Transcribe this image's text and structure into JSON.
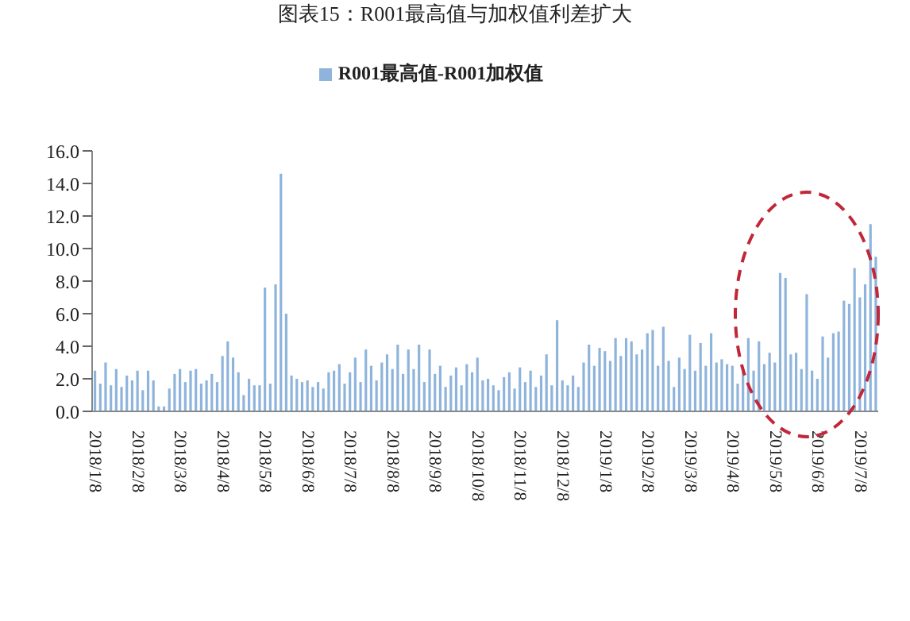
{
  "chart_data": {
    "type": "bar",
    "title": "图表15：R001最高值与加权值利差扩大",
    "categories": [
      "2018/1/8",
      null,
      null,
      null,
      null,
      null,
      null,
      null,
      "2018/2/8",
      null,
      null,
      null,
      null,
      null,
      null,
      null,
      "2018/3/8",
      null,
      null,
      null,
      null,
      null,
      null,
      null,
      "2018/4/8",
      null,
      null,
      null,
      null,
      null,
      null,
      null,
      "2018/5/8",
      null,
      null,
      null,
      null,
      null,
      null,
      null,
      "2018/6/8",
      null,
      null,
      null,
      null,
      null,
      null,
      null,
      "2018/7/8",
      null,
      null,
      null,
      null,
      null,
      null,
      null,
      "2018/8/8",
      null,
      null,
      null,
      null,
      null,
      null,
      null,
      "2018/9/8",
      null,
      null,
      null,
      null,
      null,
      null,
      null,
      "2018/10/8",
      null,
      null,
      null,
      null,
      null,
      null,
      null,
      "2018/11/8",
      null,
      null,
      null,
      null,
      null,
      null,
      null,
      "2018/12/8",
      null,
      null,
      null,
      null,
      null,
      null,
      null,
      "2019/1/8",
      null,
      null,
      null,
      null,
      null,
      null,
      null,
      "2019/2/8",
      null,
      null,
      null,
      null,
      null,
      null,
      null,
      "2019/3/8",
      null,
      null,
      null,
      null,
      null,
      null,
      null,
      "2019/4/8",
      null,
      null,
      null,
      null,
      null,
      null,
      null,
      "2019/5/8",
      null,
      null,
      null,
      null,
      null,
      null,
      null,
      "2019/6/8",
      null,
      null,
      null,
      null,
      null,
      null,
      null,
      "2019/7/8",
      null,
      null,
      null
    ],
    "series": [
      {
        "name": "R001最高值-R001加权值",
        "color": "#8fb4dc",
        "values": [
          2.5,
          1.7,
          3.0,
          1.6,
          2.6,
          1.5,
          2.2,
          1.9,
          2.5,
          1.3,
          2.5,
          1.9,
          0.3,
          0.3,
          1.4,
          2.3,
          2.6,
          1.8,
          2.5,
          2.6,
          1.7,
          1.9,
          2.3,
          1.8,
          3.4,
          4.3,
          3.3,
          2.4,
          1.0,
          2.0,
          1.6,
          1.6,
          7.6,
          1.7,
          7.8,
          14.6,
          6.0,
          2.2,
          2.0,
          1.8,
          1.9,
          1.5,
          1.8,
          1.4,
          2.4,
          2.5,
          2.9,
          1.7,
          2.4,
          3.3,
          1.8,
          3.8,
          2.8,
          1.9,
          3.0,
          3.5,
          2.6,
          4.1,
          2.3,
          3.8,
          2.6,
          4.1,
          1.8,
          3.8,
          2.3,
          2.8,
          1.5,
          2.2,
          2.7,
          1.6,
          2.9,
          2.4,
          3.3,
          1.9,
          2.0,
          1.6,
          1.3,
          2.1,
          2.4,
          1.4,
          2.7,
          1.8,
          2.5,
          1.5,
          2.2,
          3.5,
          1.6,
          5.6,
          1.9,
          1.6,
          2.2,
          1.5,
          3.0,
          4.1,
          2.8,
          3.9,
          3.7,
          3.1,
          4.5,
          3.4,
          4.5,
          4.3,
          3.5,
          3.8,
          4.8,
          5.0,
          2.8,
          5.2,
          3.1,
          1.5,
          3.3,
          2.6,
          4.7,
          2.5,
          4.2,
          2.8,
          4.8,
          3.0,
          3.2,
          2.9,
          2.8,
          1.7,
          2.6,
          4.5,
          2.5,
          4.3,
          2.9,
          3.6,
          3.0,
          8.5,
          8.2,
          3.5,
          3.6,
          2.6,
          7.2,
          2.5,
          2.0,
          4.6,
          3.3,
          4.8,
          4.9,
          6.8,
          6.6,
          8.8,
          7.0,
          7.8,
          11.5,
          9.5
        ]
      }
    ],
    "ylim": [
      0,
      16
    ],
    "yticks": [
      {
        "value": 0,
        "label": "0.0"
      },
      {
        "value": 2,
        "label": "2.0"
      },
      {
        "value": 4,
        "label": "4.0"
      },
      {
        "value": 6,
        "label": "6.0"
      },
      {
        "value": 8,
        "label": "8.0"
      },
      {
        "value": 10,
        "label": "10.0"
      },
      {
        "value": 12,
        "label": "12.0"
      },
      {
        "value": 14,
        "label": "14.0"
      },
      {
        "value": 16,
        "label": "16.0"
      }
    ],
    "legend": "top"
  }
}
